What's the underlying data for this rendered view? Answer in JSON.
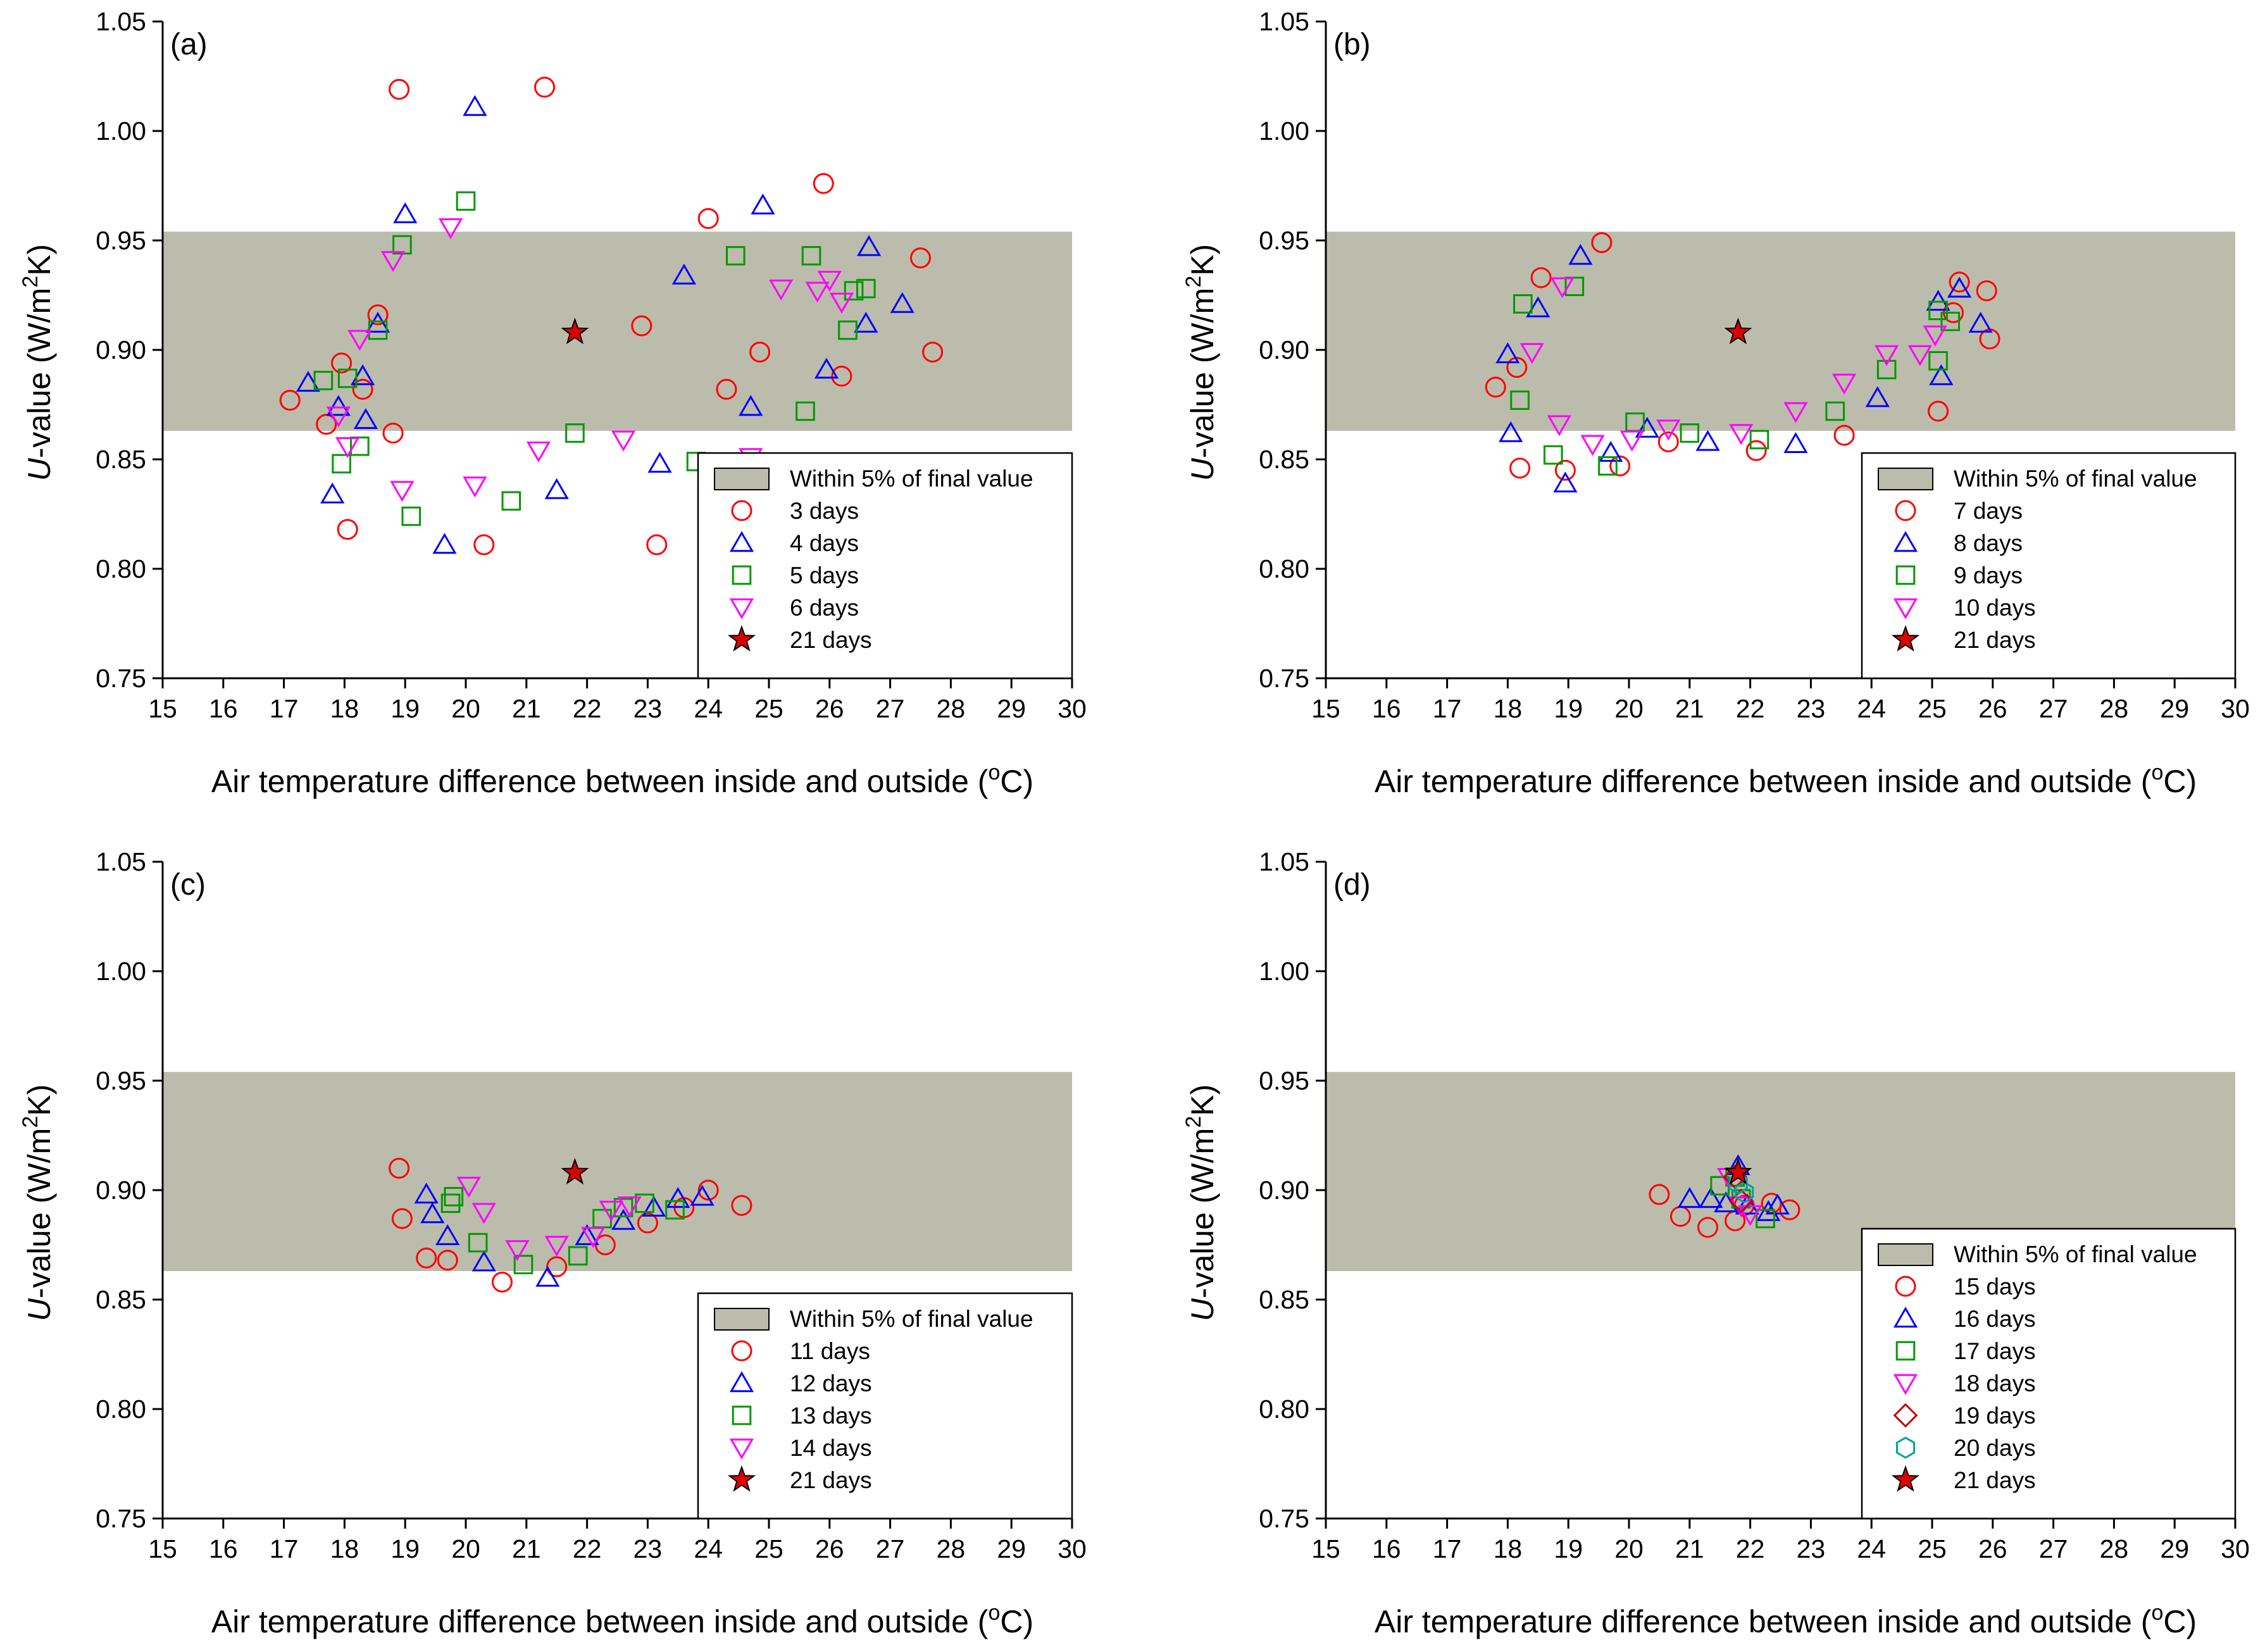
{
  "colors": {
    "band": "#bcbcac",
    "series": {
      "circle": "#ff0000",
      "triangle_up": "#0000ff",
      "square": "#009900",
      "triangle_down": "#ff00ff",
      "diamond": "#c00000",
      "hexagon": "#00a0a0",
      "star": "#dd0000"
    }
  },
  "chart_data": [
    {
      "type": "scatter",
      "panel_label": "(a)",
      "xlabel_main": "Air temperature difference between inside and outside (",
      "xlabel_sup": "o",
      "xlabel_end": "C)",
      "ylabel_italic": "U",
      "ylabel_main": "-value (W/m",
      "ylabel_sup": "2",
      "ylabel_end": "K)",
      "xlim": [
        15,
        30
      ],
      "ylim": [
        0.75,
        1.05
      ],
      "xticks": [
        "15",
        "16",
        "17",
        "18",
        "19",
        "20",
        "21",
        "22",
        "23",
        "24",
        "25",
        "26",
        "27",
        "28",
        "29",
        "30"
      ],
      "yticks": [
        "0.75",
        "0.80",
        "0.85",
        "0.90",
        "0.95",
        "1.00",
        "1.05"
      ],
      "band": {
        "label": "Within 5% of final value",
        "lower": 0.863,
        "upper": 0.954
      },
      "series": [
        {
          "name": "3 days",
          "marker": "circle",
          "points": [
            [
              17.1,
              0.877
            ],
            [
              17.7,
              0.866
            ],
            [
              17.95,
              0.894
            ],
            [
              18.05,
              0.818
            ],
            [
              18.3,
              0.882
            ],
            [
              18.55,
              0.916
            ],
            [
              18.8,
              0.862
            ],
            [
              18.9,
              1.019
            ],
            [
              21.3,
              1.02
            ],
            [
              20.3,
              0.811
            ],
            [
              22.9,
              0.911
            ],
            [
              23.15,
              0.811
            ],
            [
              24.0,
              0.96
            ],
            [
              24.3,
              0.882
            ],
            [
              24.85,
              0.899
            ],
            [
              25.9,
              0.976
            ],
            [
              26.2,
              0.888
            ],
            [
              27.5,
              0.942
            ],
            [
              27.7,
              0.899
            ]
          ]
        },
        {
          "name": "4 days",
          "marker": "triangle_up",
          "points": [
            [
              17.4,
              0.885
            ],
            [
              17.8,
              0.834
            ],
            [
              17.9,
              0.874
            ],
            [
              18.3,
              0.888
            ],
            [
              18.35,
              0.868
            ],
            [
              18.55,
              0.912
            ],
            [
              19.0,
              0.962
            ],
            [
              19.65,
              0.811
            ],
            [
              20.15,
              1.011
            ],
            [
              21.5,
              0.836
            ],
            [
              23.2,
              0.848
            ],
            [
              23.6,
              0.934
            ],
            [
              24.7,
              0.874
            ],
            [
              24.9,
              0.966
            ],
            [
              25.95,
              0.891
            ],
            [
              26.6,
              0.912
            ],
            [
              26.65,
              0.947
            ],
            [
              27.2,
              0.921
            ]
          ]
        },
        {
          "name": "5 days",
          "marker": "square",
          "points": [
            [
              17.65,
              0.886
            ],
            [
              17.95,
              0.848
            ],
            [
              18.05,
              0.887
            ],
            [
              18.25,
              0.856
            ],
            [
              18.55,
              0.909
            ],
            [
              18.95,
              0.948
            ],
            [
              19.1,
              0.824
            ],
            [
              20.0,
              0.968
            ],
            [
              20.75,
              0.831
            ],
            [
              21.8,
              0.862
            ],
            [
              23.8,
              0.849
            ],
            [
              24.45,
              0.943
            ],
            [
              25.6,
              0.872
            ],
            [
              25.7,
              0.943
            ],
            [
              26.3,
              0.909
            ],
            [
              26.4,
              0.927
            ],
            [
              26.6,
              0.928
            ]
          ]
        },
        {
          "name": "6 days",
          "marker": "triangle_down",
          "points": [
            [
              17.9,
              0.87
            ],
            [
              18.05,
              0.856
            ],
            [
              18.25,
              0.905
            ],
            [
              18.8,
              0.941
            ],
            [
              18.95,
              0.836
            ],
            [
              19.75,
              0.956
            ],
            [
              20.15,
              0.838
            ],
            [
              21.2,
              0.854
            ],
            [
              22.6,
              0.859
            ],
            [
              24.7,
              0.851
            ],
            [
              25.2,
              0.928
            ],
            [
              25.8,
              0.927
            ],
            [
              26.0,
              0.932
            ],
            [
              26.2,
              0.922
            ]
          ]
        },
        {
          "name": "21 days",
          "marker": "star",
          "points": [
            [
              21.8,
              0.908
            ]
          ]
        }
      ]
    },
    {
      "type": "scatter",
      "panel_label": "(b)",
      "xlabel_main": "Air temperature difference between inside and outside (",
      "xlabel_sup": "o",
      "xlabel_end": "C)",
      "ylabel_italic": "U",
      "ylabel_main": "-value (W/m",
      "ylabel_sup": "2",
      "ylabel_end": "K)",
      "xlim": [
        15,
        30
      ],
      "ylim": [
        0.75,
        1.05
      ],
      "xticks": [
        "15",
        "16",
        "17",
        "18",
        "19",
        "20",
        "21",
        "22",
        "23",
        "24",
        "25",
        "26",
        "27",
        "28",
        "29",
        "30"
      ],
      "yticks": [
        "0.75",
        "0.80",
        "0.85",
        "0.90",
        "0.95",
        "1.00",
        "1.05"
      ],
      "band": {
        "label": "Within 5% of final value",
        "lower": 0.863,
        "upper": 0.954
      },
      "series": [
        {
          "name": "7 days",
          "marker": "circle",
          "points": [
            [
              17.8,
              0.883
            ],
            [
              18.15,
              0.892
            ],
            [
              18.2,
              0.846
            ],
            [
              18.55,
              0.933
            ],
            [
              18.95,
              0.845
            ],
            [
              19.55,
              0.949
            ],
            [
              19.85,
              0.847
            ],
            [
              20.65,
              0.858
            ],
            [
              22.1,
              0.854
            ],
            [
              23.55,
              0.861
            ],
            [
              25.1,
              0.872
            ],
            [
              25.35,
              0.917
            ],
            [
              25.45,
              0.931
            ],
            [
              25.9,
              0.927
            ],
            [
              25.95,
              0.905
            ]
          ]
        },
        {
          "name": "8 days",
          "marker": "triangle_up",
          "points": [
            [
              18.0,
              0.898
            ],
            [
              18.05,
              0.862
            ],
            [
              18.5,
              0.919
            ],
            [
              18.95,
              0.839
            ],
            [
              19.2,
              0.943
            ],
            [
              19.7,
              0.853
            ],
            [
              20.3,
              0.864
            ],
            [
              21.3,
              0.858
            ],
            [
              22.75,
              0.857
            ],
            [
              24.1,
              0.878
            ],
            [
              25.1,
              0.922
            ],
            [
              25.15,
              0.888
            ],
            [
              25.45,
              0.928
            ],
            [
              25.8,
              0.912
            ]
          ]
        },
        {
          "name": "9 days",
          "marker": "square",
          "points": [
            [
              18.2,
              0.877
            ],
            [
              18.25,
              0.921
            ],
            [
              18.75,
              0.852
            ],
            [
              19.1,
              0.929
            ],
            [
              19.65,
              0.847
            ],
            [
              20.1,
              0.867
            ],
            [
              21.0,
              0.862
            ],
            [
              22.15,
              0.859
            ],
            [
              23.4,
              0.872
            ],
            [
              24.25,
              0.891
            ],
            [
              25.1,
              0.895
            ],
            [
              25.1,
              0.918
            ],
            [
              25.3,
              0.913
            ]
          ]
        },
        {
          "name": "10 days",
          "marker": "triangle_down",
          "points": [
            [
              18.4,
              0.899
            ],
            [
              18.85,
              0.866
            ],
            [
              18.9,
              0.929
            ],
            [
              19.4,
              0.857
            ],
            [
              20.05,
              0.859
            ],
            [
              20.65,
              0.864
            ],
            [
              21.85,
              0.862
            ],
            [
              22.75,
              0.872
            ],
            [
              23.55,
              0.885
            ],
            [
              24.25,
              0.898
            ],
            [
              24.8,
              0.898
            ],
            [
              25.05,
              0.907
            ]
          ]
        },
        {
          "name": "21 days",
          "marker": "star",
          "points": [
            [
              21.8,
              0.908
            ]
          ]
        }
      ]
    },
    {
      "type": "scatter",
      "panel_label": "(c)",
      "xlabel_main": "Air temperature difference between inside and outside (",
      "xlabel_sup": "o",
      "xlabel_end": "C)",
      "ylabel_italic": "U",
      "ylabel_main": "-value (W/m",
      "ylabel_sup": "2",
      "ylabel_end": "K)",
      "xlim": [
        15,
        30
      ],
      "ylim": [
        0.75,
        1.05
      ],
      "xticks": [
        "15",
        "16",
        "17",
        "18",
        "19",
        "20",
        "21",
        "22",
        "23",
        "24",
        "25",
        "26",
        "27",
        "28",
        "29",
        "30"
      ],
      "yticks": [
        "0.75",
        "0.80",
        "0.85",
        "0.90",
        "0.95",
        "1.00",
        "1.05"
      ],
      "band": {
        "label": "Within 5% of final value",
        "lower": 0.863,
        "upper": 0.954
      },
      "series": [
        {
          "name": "11 days",
          "marker": "circle",
          "points": [
            [
              18.9,
              0.91
            ],
            [
              18.95,
              0.887
            ],
            [
              19.35,
              0.869
            ],
            [
              19.7,
              0.868
            ],
            [
              20.6,
              0.858
            ],
            [
              21.5,
              0.865
            ],
            [
              22.3,
              0.875
            ],
            [
              23.0,
              0.885
            ],
            [
              23.6,
              0.892
            ],
            [
              24.0,
              0.9
            ],
            [
              24.55,
              0.893
            ]
          ]
        },
        {
          "name": "12 days",
          "marker": "triangle_up",
          "points": [
            [
              19.35,
              0.898
            ],
            [
              19.45,
              0.889
            ],
            [
              19.7,
              0.879
            ],
            [
              20.3,
              0.867
            ],
            [
              21.35,
              0.86
            ],
            [
              22.0,
              0.879
            ],
            [
              22.6,
              0.886
            ],
            [
              23.1,
              0.892
            ],
            [
              23.5,
              0.896
            ],
            [
              23.9,
              0.897
            ]
          ]
        },
        {
          "name": "13 days",
          "marker": "square",
          "points": [
            [
              19.75,
              0.894
            ],
            [
              19.8,
              0.897
            ],
            [
              20.2,
              0.876
            ],
            [
              20.95,
              0.866
            ],
            [
              21.85,
              0.87
            ],
            [
              22.25,
              0.887
            ],
            [
              22.6,
              0.892
            ],
            [
              22.95,
              0.894
            ],
            [
              23.45,
              0.891
            ]
          ]
        },
        {
          "name": "14 days",
          "marker": "triangle_down",
          "points": [
            [
              20.05,
              0.902
            ],
            [
              20.3,
              0.89
            ],
            [
              20.85,
              0.873
            ],
            [
              21.5,
              0.875
            ],
            [
              22.1,
              0.879
            ],
            [
              22.4,
              0.891
            ],
            [
              22.7,
              0.893
            ]
          ]
        },
        {
          "name": "21 days",
          "marker": "star",
          "points": [
            [
              21.8,
              0.908
            ]
          ]
        }
      ]
    },
    {
      "type": "scatter",
      "panel_label": "(d)",
      "xlabel_main": "Air temperature difference between inside and outside (",
      "xlabel_sup": "o",
      "xlabel_end": "C)",
      "ylabel_italic": "U",
      "ylabel_main": "-value (W/m",
      "ylabel_sup": "2",
      "ylabel_end": "K)",
      "xlim": [
        15,
        30
      ],
      "ylim": [
        0.75,
        1.05
      ],
      "xticks": [
        "15",
        "16",
        "17",
        "18",
        "19",
        "20",
        "21",
        "22",
        "23",
        "24",
        "25",
        "26",
        "27",
        "28",
        "29",
        "30"
      ],
      "yticks": [
        "0.75",
        "0.80",
        "0.85",
        "0.90",
        "0.95",
        "1.00",
        "1.05"
      ],
      "band": {
        "label": "Within 5% of final value",
        "lower": 0.863,
        "upper": 0.954
      },
      "series": [
        {
          "name": "15 days",
          "marker": "circle",
          "points": [
            [
              20.5,
              0.898
            ],
            [
              20.85,
              0.888
            ],
            [
              21.3,
              0.883
            ],
            [
              21.75,
              0.886
            ],
            [
              21.9,
              0.893
            ],
            [
              22.35,
              0.894
            ],
            [
              22.65,
              0.891
            ]
          ]
        },
        {
          "name": "16 days",
          "marker": "triangle_up",
          "points": [
            [
              21.0,
              0.896
            ],
            [
              21.35,
              0.896
            ],
            [
              21.6,
              0.894
            ],
            [
              21.8,
              0.911
            ],
            [
              21.95,
              0.893
            ],
            [
              22.3,
              0.89
            ],
            [
              22.45,
              0.893
            ]
          ]
        },
        {
          "name": "17 days",
          "marker": "square",
          "points": [
            [
              21.5,
              0.902
            ],
            [
              21.75,
              0.906
            ],
            [
              21.85,
              0.896
            ],
            [
              22.25,
              0.887
            ]
          ]
        },
        {
          "name": "18 days",
          "marker": "triangle_down",
          "points": [
            [
              21.65,
              0.906
            ],
            [
              21.85,
              0.893
            ],
            [
              22.0,
              0.889
            ]
          ]
        },
        {
          "name": "19 days",
          "marker": "diamond",
          "points": [
            [
              21.75,
              0.906
            ],
            [
              21.85,
              0.895
            ]
          ]
        },
        {
          "name": "20 days",
          "marker": "hexagon",
          "points": [
            [
              21.8,
              0.903
            ],
            [
              21.9,
              0.899
            ]
          ]
        },
        {
          "name": "21 days",
          "marker": "star",
          "points": [
            [
              21.8,
              0.908
            ]
          ]
        }
      ]
    }
  ]
}
